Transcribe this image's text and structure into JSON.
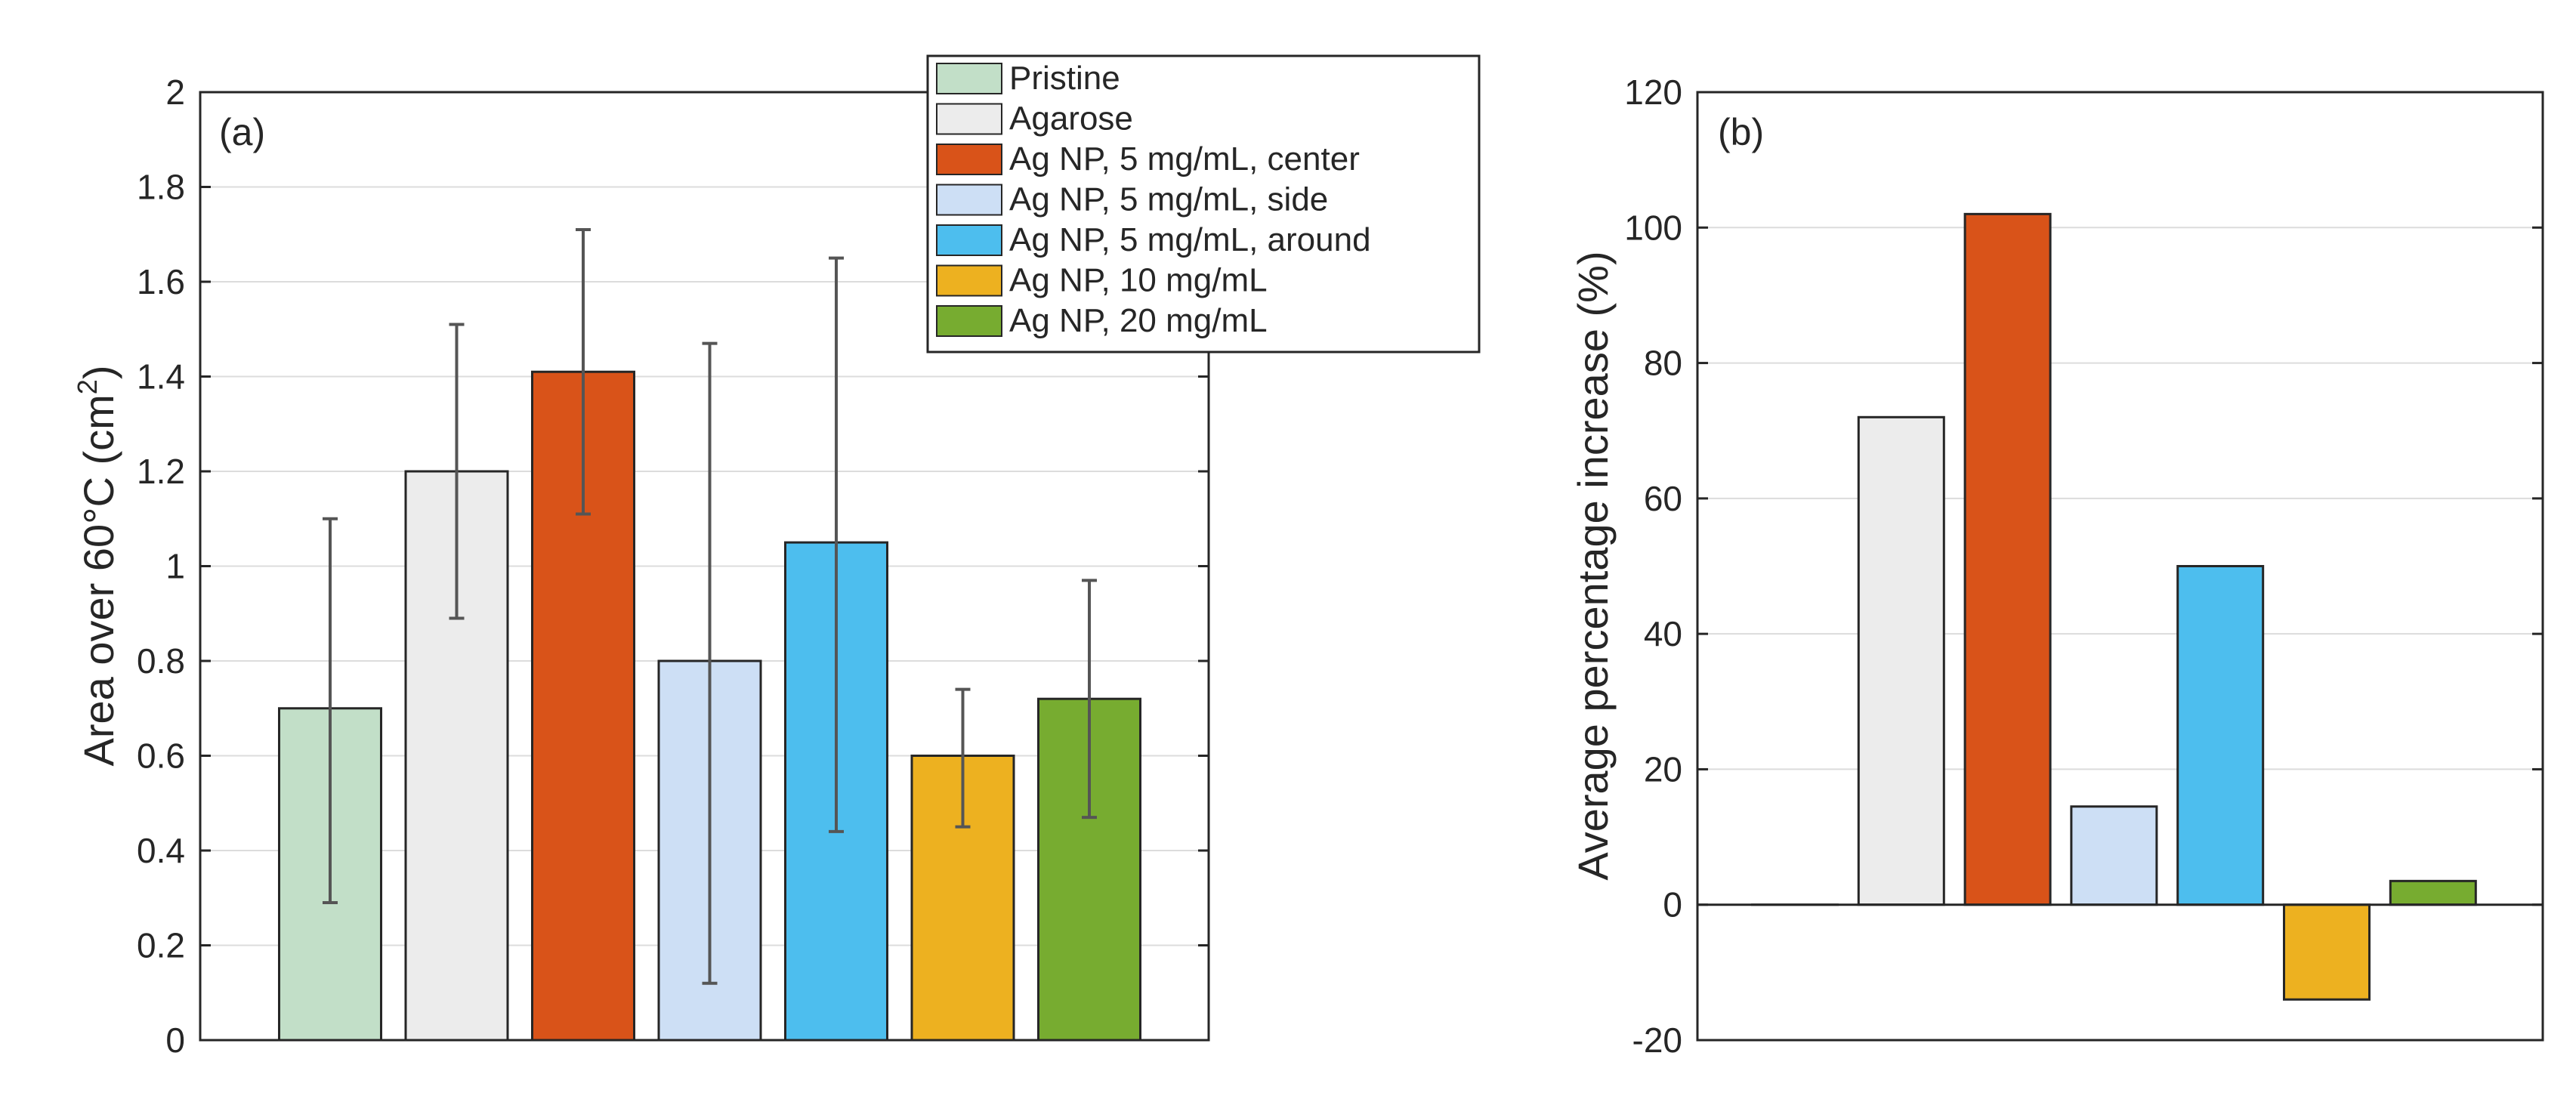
{
  "chart_data": [
    {
      "type": "bar",
      "panel_label": "(a)",
      "ylabel": "Area over 60°C (cm",
      "ylabel_sup": "2",
      "ylabel_close": ")",
      "ylim": [
        0,
        2
      ],
      "yticks": [
        "0",
        "0.2",
        "0.4",
        "0.6",
        "0.8",
        "1",
        "1.2",
        "1.4",
        "1.6",
        "1.8",
        "2"
      ],
      "ytick_values": [
        0,
        0.2,
        0.4,
        0.6,
        0.8,
        1.0,
        1.2,
        1.4,
        1.6,
        1.8,
        2.0
      ],
      "grid": true,
      "categories": [
        "Pristine",
        "Agarose",
        "Ag NP, 5 mg/mL, center",
        "Ag NP, 5 mg/mL, side",
        "Ag NP, 5 mg/mL, around",
        "Ag NP, 10 mg/mL",
        "Ag NP, 20 mg/mL"
      ],
      "values": [
        0.7,
        1.2,
        1.41,
        0.8,
        1.05,
        0.6,
        0.72
      ],
      "error_low": [
        0.29,
        0.89,
        1.11,
        0.12,
        0.44,
        0.45,
        0.47
      ],
      "error_high": [
        1.1,
        1.51,
        1.71,
        1.47,
        1.65,
        0.74,
        0.97
      ],
      "legend_position": "top-right"
    },
    {
      "type": "bar",
      "panel_label": "(b)",
      "ylabel": "Average percentage increase (%)",
      "ylim": [
        -20,
        120
      ],
      "yticks": [
        "-20",
        "0",
        "20",
        "40",
        "60",
        "80",
        "100",
        "120"
      ],
      "ytick_values": [
        -20,
        0,
        20,
        40,
        60,
        80,
        100,
        120
      ],
      "grid": true,
      "categories": [
        "Pristine",
        "Agarose",
        "Ag NP, 5 mg/mL, center",
        "Ag NP, 5 mg/mL, side",
        "Ag NP, 5 mg/mL, around",
        "Ag NP, 10 mg/mL",
        "Ag NP, 20 mg/mL"
      ],
      "values": [
        0,
        72,
        102,
        14.5,
        50,
        -14,
        3.5
      ]
    }
  ],
  "legend": {
    "items": [
      {
        "label": "Pristine",
        "color": "#c2dfc8"
      },
      {
        "label": "Agarose",
        "color": "#ececec"
      },
      {
        "label": "Ag NP, 5 mg/mL, center",
        "color": "#d95319"
      },
      {
        "label": "Ag NP, 5 mg/mL, side",
        "color": "#cddff5"
      },
      {
        "label": "Ag NP, 5 mg/mL, around",
        "color": "#4dbeee"
      },
      {
        "label": "Ag NP, 10 mg/mL",
        "color": "#edb120"
      },
      {
        "label": "Ag NP, 20 mg/mL",
        "color": "#77ac30"
      }
    ]
  }
}
